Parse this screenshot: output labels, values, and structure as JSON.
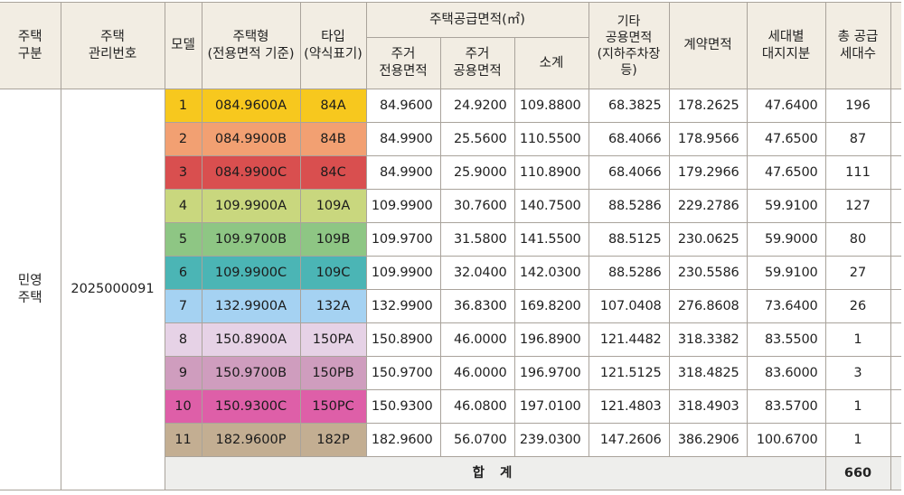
{
  "headers": {
    "housing_category": "주택\n구분",
    "management_number": "주택\n관리번호",
    "model": "모델",
    "housing_type": "주택형\n(전용면적 기준)",
    "type_abbr": "타입\n(약식표기)",
    "supply_area_group": "주택공급면적(㎡)",
    "exclusive_area": "주거\n전용면적",
    "common_area": "주거\n공용면적",
    "subtotal": "소계",
    "other_common": "기타\n공용면적\n(지하주차장 등)",
    "contract_area": "계약면적",
    "land_share": "세대별\n대지지분",
    "total_units": "총 공급\n세대수"
  },
  "category": "민영\n주택",
  "management_no": "2025000091",
  "rows": [
    {
      "model": "1",
      "housing_type": "084.9600A",
      "type_abbr": "84A",
      "exclusive": "84.9600",
      "common": "24.9200",
      "subtotal": "109.8800",
      "other": "68.3825",
      "contract": "178.2625",
      "land": "47.6400",
      "units": "196",
      "color": "#f7c81e"
    },
    {
      "model": "2",
      "housing_type": "084.9900B",
      "type_abbr": "84B",
      "exclusive": "84.9900",
      "common": "25.5600",
      "subtotal": "110.5500",
      "other": "68.4066",
      "contract": "178.9566",
      "land": "47.6500",
      "units": "87",
      "color": "#f2a072"
    },
    {
      "model": "3",
      "housing_type": "084.9900C",
      "type_abbr": "84C",
      "exclusive": "84.9900",
      "common": "25.9000",
      "subtotal": "110.8900",
      "other": "68.4066",
      "contract": "179.2966",
      "land": "47.6500",
      "units": "111",
      "color": "#d94f4f"
    },
    {
      "model": "4",
      "housing_type": "109.9900A",
      "type_abbr": "109A",
      "exclusive": "109.9900",
      "common": "30.7600",
      "subtotal": "140.7500",
      "other": "88.5286",
      "contract": "229.2786",
      "land": "59.9100",
      "units": "127",
      "color": "#c9d77e"
    },
    {
      "model": "5",
      "housing_type": "109.9700B",
      "type_abbr": "109B",
      "exclusive": "109.9700",
      "common": "31.5800",
      "subtotal": "141.5500",
      "other": "88.5125",
      "contract": "230.0625",
      "land": "59.9000",
      "units": "80",
      "color": "#8ec684"
    },
    {
      "model": "6",
      "housing_type": "109.9900C",
      "type_abbr": "109C",
      "exclusive": "109.9900",
      "common": "32.0400",
      "subtotal": "142.0300",
      "other": "88.5286",
      "contract": "230.5586",
      "land": "59.9100",
      "units": "27",
      "color": "#4bb5b5"
    },
    {
      "model": "7",
      "housing_type": "132.9900A",
      "type_abbr": "132A",
      "exclusive": "132.9900",
      "common": "36.8300",
      "subtotal": "169.8200",
      "other": "107.0408",
      "contract": "276.8608",
      "land": "73.6400",
      "units": "26",
      "color": "#a5d2f2"
    },
    {
      "model": "8",
      "housing_type": "150.8900A",
      "type_abbr": "150PA",
      "exclusive": "150.8900",
      "common": "46.0000",
      "subtotal": "196.8900",
      "other": "121.4482",
      "contract": "318.3382",
      "land": "83.5500",
      "units": "1",
      "color": "#e6d2e6"
    },
    {
      "model": "9",
      "housing_type": "150.9700B",
      "type_abbr": "150PB",
      "exclusive": "150.9700",
      "common": "46.0000",
      "subtotal": "196.9700",
      "other": "121.5125",
      "contract": "318.4825",
      "land": "83.6000",
      "units": "3",
      "color": "#cf9dbe"
    },
    {
      "model": "10",
      "housing_type": "150.9300C",
      "type_abbr": "150PC",
      "exclusive": "150.9300",
      "common": "46.0800",
      "subtotal": "197.0100",
      "other": "121.4803",
      "contract": "318.4903",
      "land": "83.5700",
      "units": "1",
      "color": "#de5fa8"
    },
    {
      "model": "11",
      "housing_type": "182.9600P",
      "type_abbr": "182P",
      "exclusive": "182.9600",
      "common": "56.0700",
      "subtotal": "239.0300",
      "other": "147.2606",
      "contract": "386.2906",
      "land": "100.6700",
      "units": "1",
      "color": "#c3ae92"
    }
  ],
  "total": {
    "label": "합 계",
    "units": "660"
  }
}
